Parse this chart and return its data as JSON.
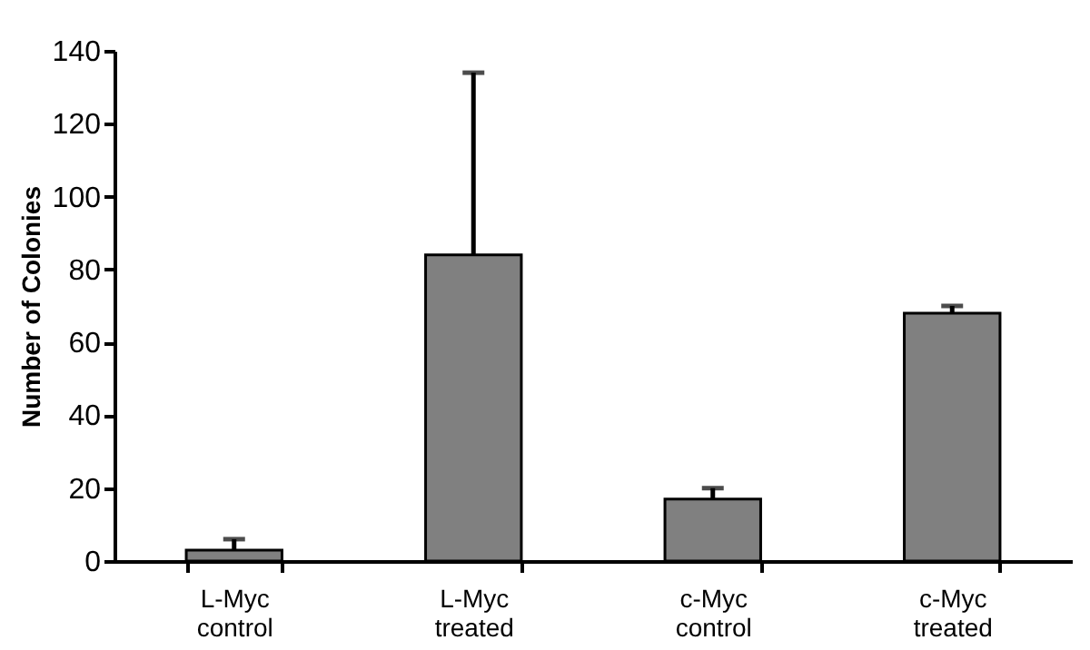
{
  "chart_data": {
    "type": "bar",
    "ylabel": "Number of Colonies",
    "categories": [
      "L-Myc\ncontrol",
      "L-Myc\ntreated",
      "c-Myc\ncontrol",
      "c-Myc\ntreated"
    ],
    "values": [
      3,
      84,
      17,
      68
    ],
    "errors": [
      [
        3,
        6
      ],
      [
        84,
        134
      ],
      [
        17,
        20
      ],
      [
        68,
        70
      ]
    ],
    "color": "#808080",
    "ylim": [
      0,
      140
    ],
    "yticks": [
      0,
      20,
      40,
      60,
      80,
      100,
      120,
      140
    ],
    "grid": false
  }
}
